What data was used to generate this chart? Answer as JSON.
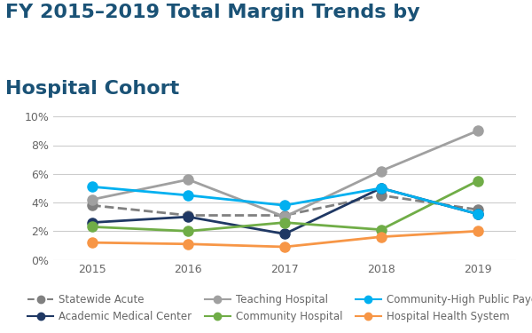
{
  "title_line1": "FY 2015–2019 Total Margin Trends by",
  "title_line2": "Hospital Cohort",
  "years": [
    2015,
    2016,
    2017,
    2018,
    2019
  ],
  "series": {
    "Statewide Acute": {
      "values": [
        3.8,
        3.1,
        3.1,
        4.5,
        3.5
      ],
      "color": "#808080",
      "linestyle": "dashed",
      "marker": "o",
      "linewidth": 2.0,
      "markersize": 8
    },
    "Academic Medical Center": {
      "values": [
        2.6,
        3.0,
        1.8,
        5.0,
        3.2
      ],
      "color": "#1f3864",
      "linestyle": "solid",
      "marker": "o",
      "linewidth": 2.0,
      "markersize": 8
    },
    "Teaching Hospital": {
      "values": [
        4.2,
        5.6,
        3.0,
        6.2,
        9.0
      ],
      "color": "#a0a0a0",
      "linestyle": "solid",
      "marker": "o",
      "linewidth": 2.0,
      "markersize": 8
    },
    "Community Hospital": {
      "values": [
        2.3,
        2.0,
        2.6,
        2.1,
        5.5
      ],
      "color": "#70ad47",
      "linestyle": "solid",
      "marker": "o",
      "linewidth": 2.0,
      "markersize": 8
    },
    "Community-High Public Payer": {
      "values": [
        5.1,
        4.5,
        3.8,
        5.0,
        3.2
      ],
      "color": "#00b0f0",
      "linestyle": "solid",
      "marker": "o",
      "linewidth": 2.0,
      "markersize": 8
    },
    "Hospital Health System": {
      "values": [
        1.2,
        1.1,
        0.9,
        1.6,
        2.0
      ],
      "color": "#f79646",
      "linestyle": "solid",
      "marker": "o",
      "linewidth": 2.0,
      "markersize": 8
    }
  },
  "ylim": [
    0,
    10
  ],
  "yticks": [
    0,
    2,
    4,
    6,
    8,
    10
  ],
  "ytick_labels": [
    "0%",
    "2%",
    "4%",
    "6%",
    "8%",
    "10%"
  ],
  "background_color": "#ffffff",
  "grid_color": "#cccccc",
  "title_color": "#1a5276",
  "title_fontsize": 16,
  "legend_fontsize": 8.5,
  "axis_fontsize": 9,
  "axis_color": "#666666"
}
